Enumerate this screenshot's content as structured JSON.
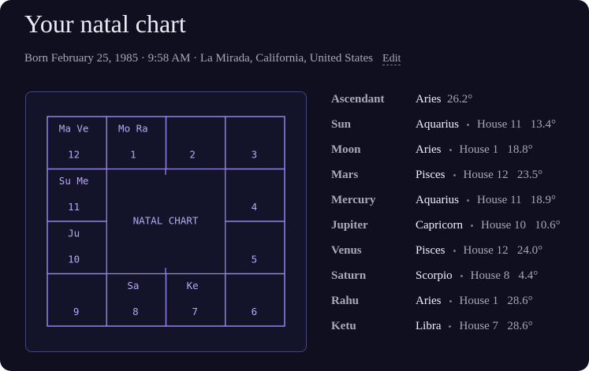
{
  "header": {
    "title": "Your natal chart",
    "subtitle": "Born February 25, 1985 · 9:58 AM · La Mirada, California, United States",
    "edit": "Edit"
  },
  "chart": {
    "center_label": "NATAL CHART",
    "houses": [
      {
        "number": "12",
        "planets": "Ma Ve"
      },
      {
        "number": "1",
        "planets": "Mo Ra"
      },
      {
        "number": "2"
      },
      {
        "number": "3"
      },
      {
        "number": "11",
        "planets": "Su Me"
      },
      {
        "number": "4"
      },
      {
        "number": "10",
        "planets": "Ju"
      },
      {
        "number": "5"
      },
      {
        "number": "9"
      },
      {
        "number": "8",
        "planets": "Sa"
      },
      {
        "number": "7",
        "planets": "Ke"
      },
      {
        "number": "6"
      }
    ]
  },
  "placements": [
    {
      "name": "Ascendant",
      "sign": "Aries",
      "degree": "26.2°"
    },
    {
      "name": "Sun",
      "sign": "Aquarius",
      "house": "House 11",
      "degree": "13.4°"
    },
    {
      "name": "Moon",
      "sign": "Aries",
      "house": "House 1",
      "degree": "18.8°"
    },
    {
      "name": "Mars",
      "sign": "Pisces",
      "house": "House 12",
      "degree": "23.5°"
    },
    {
      "name": "Mercury",
      "sign": "Aquarius",
      "house": "House 11",
      "degree": "18.9°"
    },
    {
      "name": "Jupiter",
      "sign": "Capricorn",
      "house": "House 10",
      "degree": "10.6°"
    },
    {
      "name": "Venus",
      "sign": "Pisces",
      "house": "House 12",
      "degree": "24.0°"
    },
    {
      "name": "Saturn",
      "sign": "Scorpio",
      "house": "House 8",
      "degree": "4.4°"
    },
    {
      "name": "Rahu",
      "sign": "Aries",
      "house": "House 1",
      "degree": "28.6°"
    },
    {
      "name": "Ketu",
      "sign": "Libra",
      "house": "House 7",
      "degree": "28.6°"
    }
  ]
}
